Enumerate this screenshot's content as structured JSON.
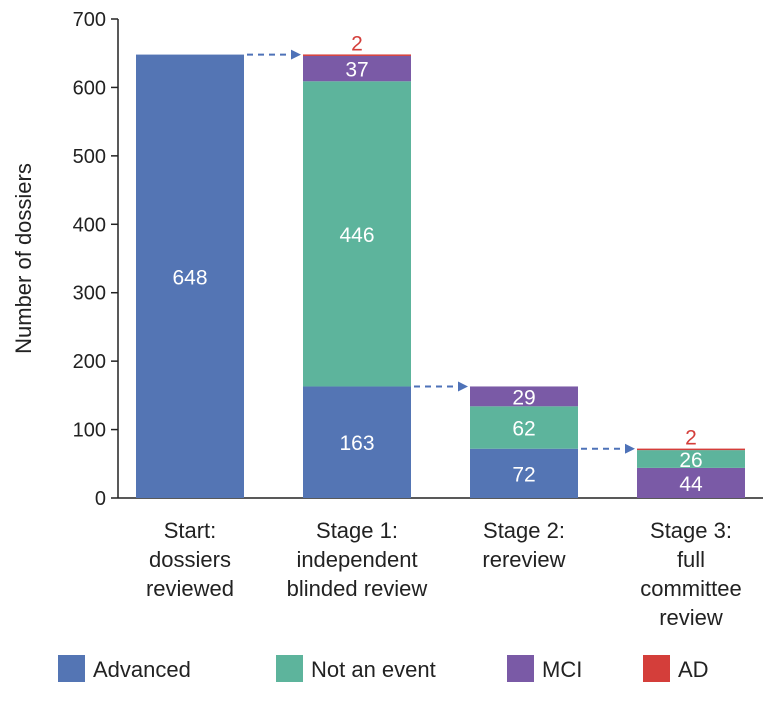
{
  "colors": {
    "Advanced": "#5475b4",
    "Not an event": "#5db49c",
    "MCI": "#7a5aa6",
    "AD": "#d43e3a",
    "axis": "#222222",
    "arrow": "#4e72b8"
  },
  "chart_data": {
    "type": "bar",
    "stacked": true,
    "ylabel": "Number of dossiers",
    "ylim": [
      0,
      700
    ],
    "yticks": [
      0,
      100,
      200,
      300,
      400,
      500,
      600,
      700
    ],
    "grid": false,
    "legend_position": "bottom",
    "categories": [
      [
        "Start:",
        "dossiers",
        "reviewed"
      ],
      [
        "Stage 1:",
        "independent",
        "blinded review"
      ],
      [
        "Stage 2:",
        "rereview"
      ],
      [
        "Stage 3:",
        "full",
        "committee",
        "review"
      ]
    ],
    "legend": [
      "Advanced",
      "Not an event",
      "MCI",
      "AD"
    ],
    "stacks": [
      [
        {
          "series": "Advanced",
          "value": 648,
          "label": "648"
        }
      ],
      [
        {
          "series": "Advanced",
          "value": 163,
          "label": "163"
        },
        {
          "series": "Not an event",
          "value": 446,
          "label": "446"
        },
        {
          "series": "MCI",
          "value": 37,
          "label": "37"
        },
        {
          "series": "AD",
          "value": 2,
          "label": "2",
          "label_outside": true
        }
      ],
      [
        {
          "series": "Advanced",
          "value": 72,
          "label": "72"
        },
        {
          "series": "Not an event",
          "value": 62,
          "label": "62"
        },
        {
          "series": "MCI",
          "value": 29,
          "label": "29"
        }
      ],
      [
        {
          "series": "MCI",
          "value": 44,
          "label": "44"
        },
        {
          "series": "Not an event",
          "value": 26,
          "label": "26"
        },
        {
          "series": "AD",
          "value": 2,
          "label": "2",
          "label_outside": true
        }
      ]
    ],
    "flow_arrows": [
      {
        "from_category": 0,
        "to_category": 1,
        "at_value": 648
      },
      {
        "from_category": 1,
        "to_category": 2,
        "at_value": 163
      },
      {
        "from_category": 2,
        "to_category": 3,
        "at_value": 72
      }
    ]
  }
}
